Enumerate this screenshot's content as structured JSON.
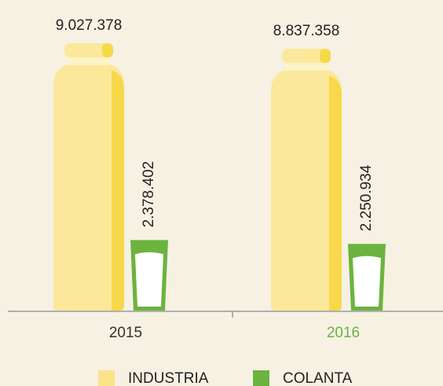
{
  "chart_data": {
    "type": "bar",
    "categories": [
      "2015",
      "2016"
    ],
    "category_colors": [
      "#333333",
      "#6cb33f"
    ],
    "series": [
      {
        "name": "INDUSTRIA",
        "color": "#fbe89a",
        "values": [
          9027378,
          8837358
        ],
        "value_labels": [
          "9.027.378",
          "8.837.358"
        ]
      },
      {
        "name": "COLANTA",
        "color": "#6cb33f",
        "values": [
          2378402,
          2250934
        ],
        "value_labels": [
          "2.378.402",
          "2.250.934"
        ]
      }
    ],
    "legend": "bottom"
  }
}
